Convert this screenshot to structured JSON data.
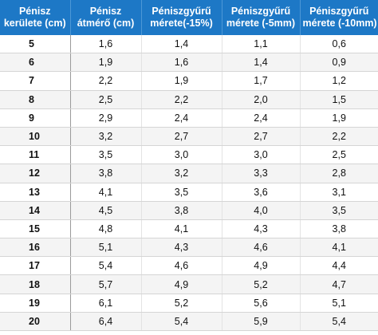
{
  "table": {
    "headers": [
      [
        "Pénisz",
        "kerülete (cm)"
      ],
      [
        "Pénisz",
        "átmérő (cm)"
      ],
      [
        "Péniszgyűrű",
        "mérete(-15%)"
      ],
      [
        "Péniszgyűrű",
        "mérete (-5mm)"
      ],
      [
        "Péniszgyűrű",
        "mérete (-10mm)"
      ]
    ],
    "rows": [
      [
        "5",
        "1,6",
        "1,4",
        "1,1",
        "0,6"
      ],
      [
        "6",
        "1,9",
        "1,6",
        "1,4",
        "0,9"
      ],
      [
        "7",
        "2,2",
        "1,9",
        "1,7",
        "1,2"
      ],
      [
        "8",
        "2,5",
        "2,2",
        "2,0",
        "1,5"
      ],
      [
        "9",
        "2,9",
        "2,4",
        "2,4",
        "1,9"
      ],
      [
        "10",
        "3,2",
        "2,7",
        "2,7",
        "2,2"
      ],
      [
        "11",
        "3,5",
        "3,0",
        "3,0",
        "2,5"
      ],
      [
        "12",
        "3,8",
        "3,2",
        "3,3",
        "2,8"
      ],
      [
        "13",
        "4,1",
        "3,5",
        "3,6",
        "3,1"
      ],
      [
        "14",
        "4,5",
        "3,8",
        "4,0",
        "3,5"
      ],
      [
        "15",
        "4,8",
        "4,1",
        "4,3",
        "3,8"
      ],
      [
        "16",
        "5,1",
        "4,3",
        "4,6",
        "4,1"
      ],
      [
        "17",
        "5,4",
        "4,6",
        "4,9",
        "4,4"
      ],
      [
        "18",
        "5,7",
        "4,9",
        "5,2",
        "4,7"
      ],
      [
        "19",
        "6,1",
        "5,2",
        "5,6",
        "5,1"
      ],
      [
        "20",
        "6,4",
        "5,4",
        "5,9",
        "5,4"
      ]
    ]
  },
  "colors": {
    "header_background": "#1d78c6",
    "header_text": "#ffffff",
    "stripe": "#f4f4f4"
  }
}
